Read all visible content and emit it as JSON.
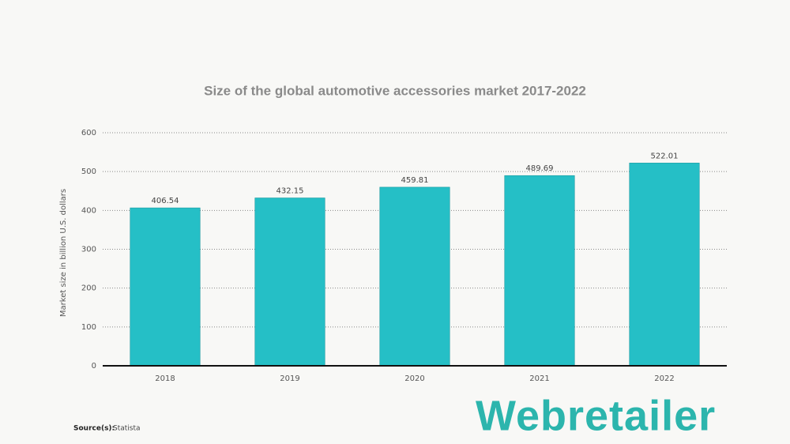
{
  "chart_data": {
    "type": "bar",
    "title": "Size of the global automotive accessories market 2017-2022",
    "y_label": "Market size in billion U.S. dollars",
    "categories": [
      "2018",
      "2019",
      "2020",
      "2021",
      "2022"
    ],
    "values": [
      406.54,
      432.15,
      459.81,
      489.69,
      522.01
    ],
    "color": "#25bfc6",
    "ylim": [
      0,
      600
    ],
    "yticks": [
      0,
      100,
      200,
      300,
      400,
      500,
      600
    ],
    "grid": true
  },
  "source": {
    "label": "Source(s):",
    "text": "Statista"
  },
  "logo": "Webretailer"
}
